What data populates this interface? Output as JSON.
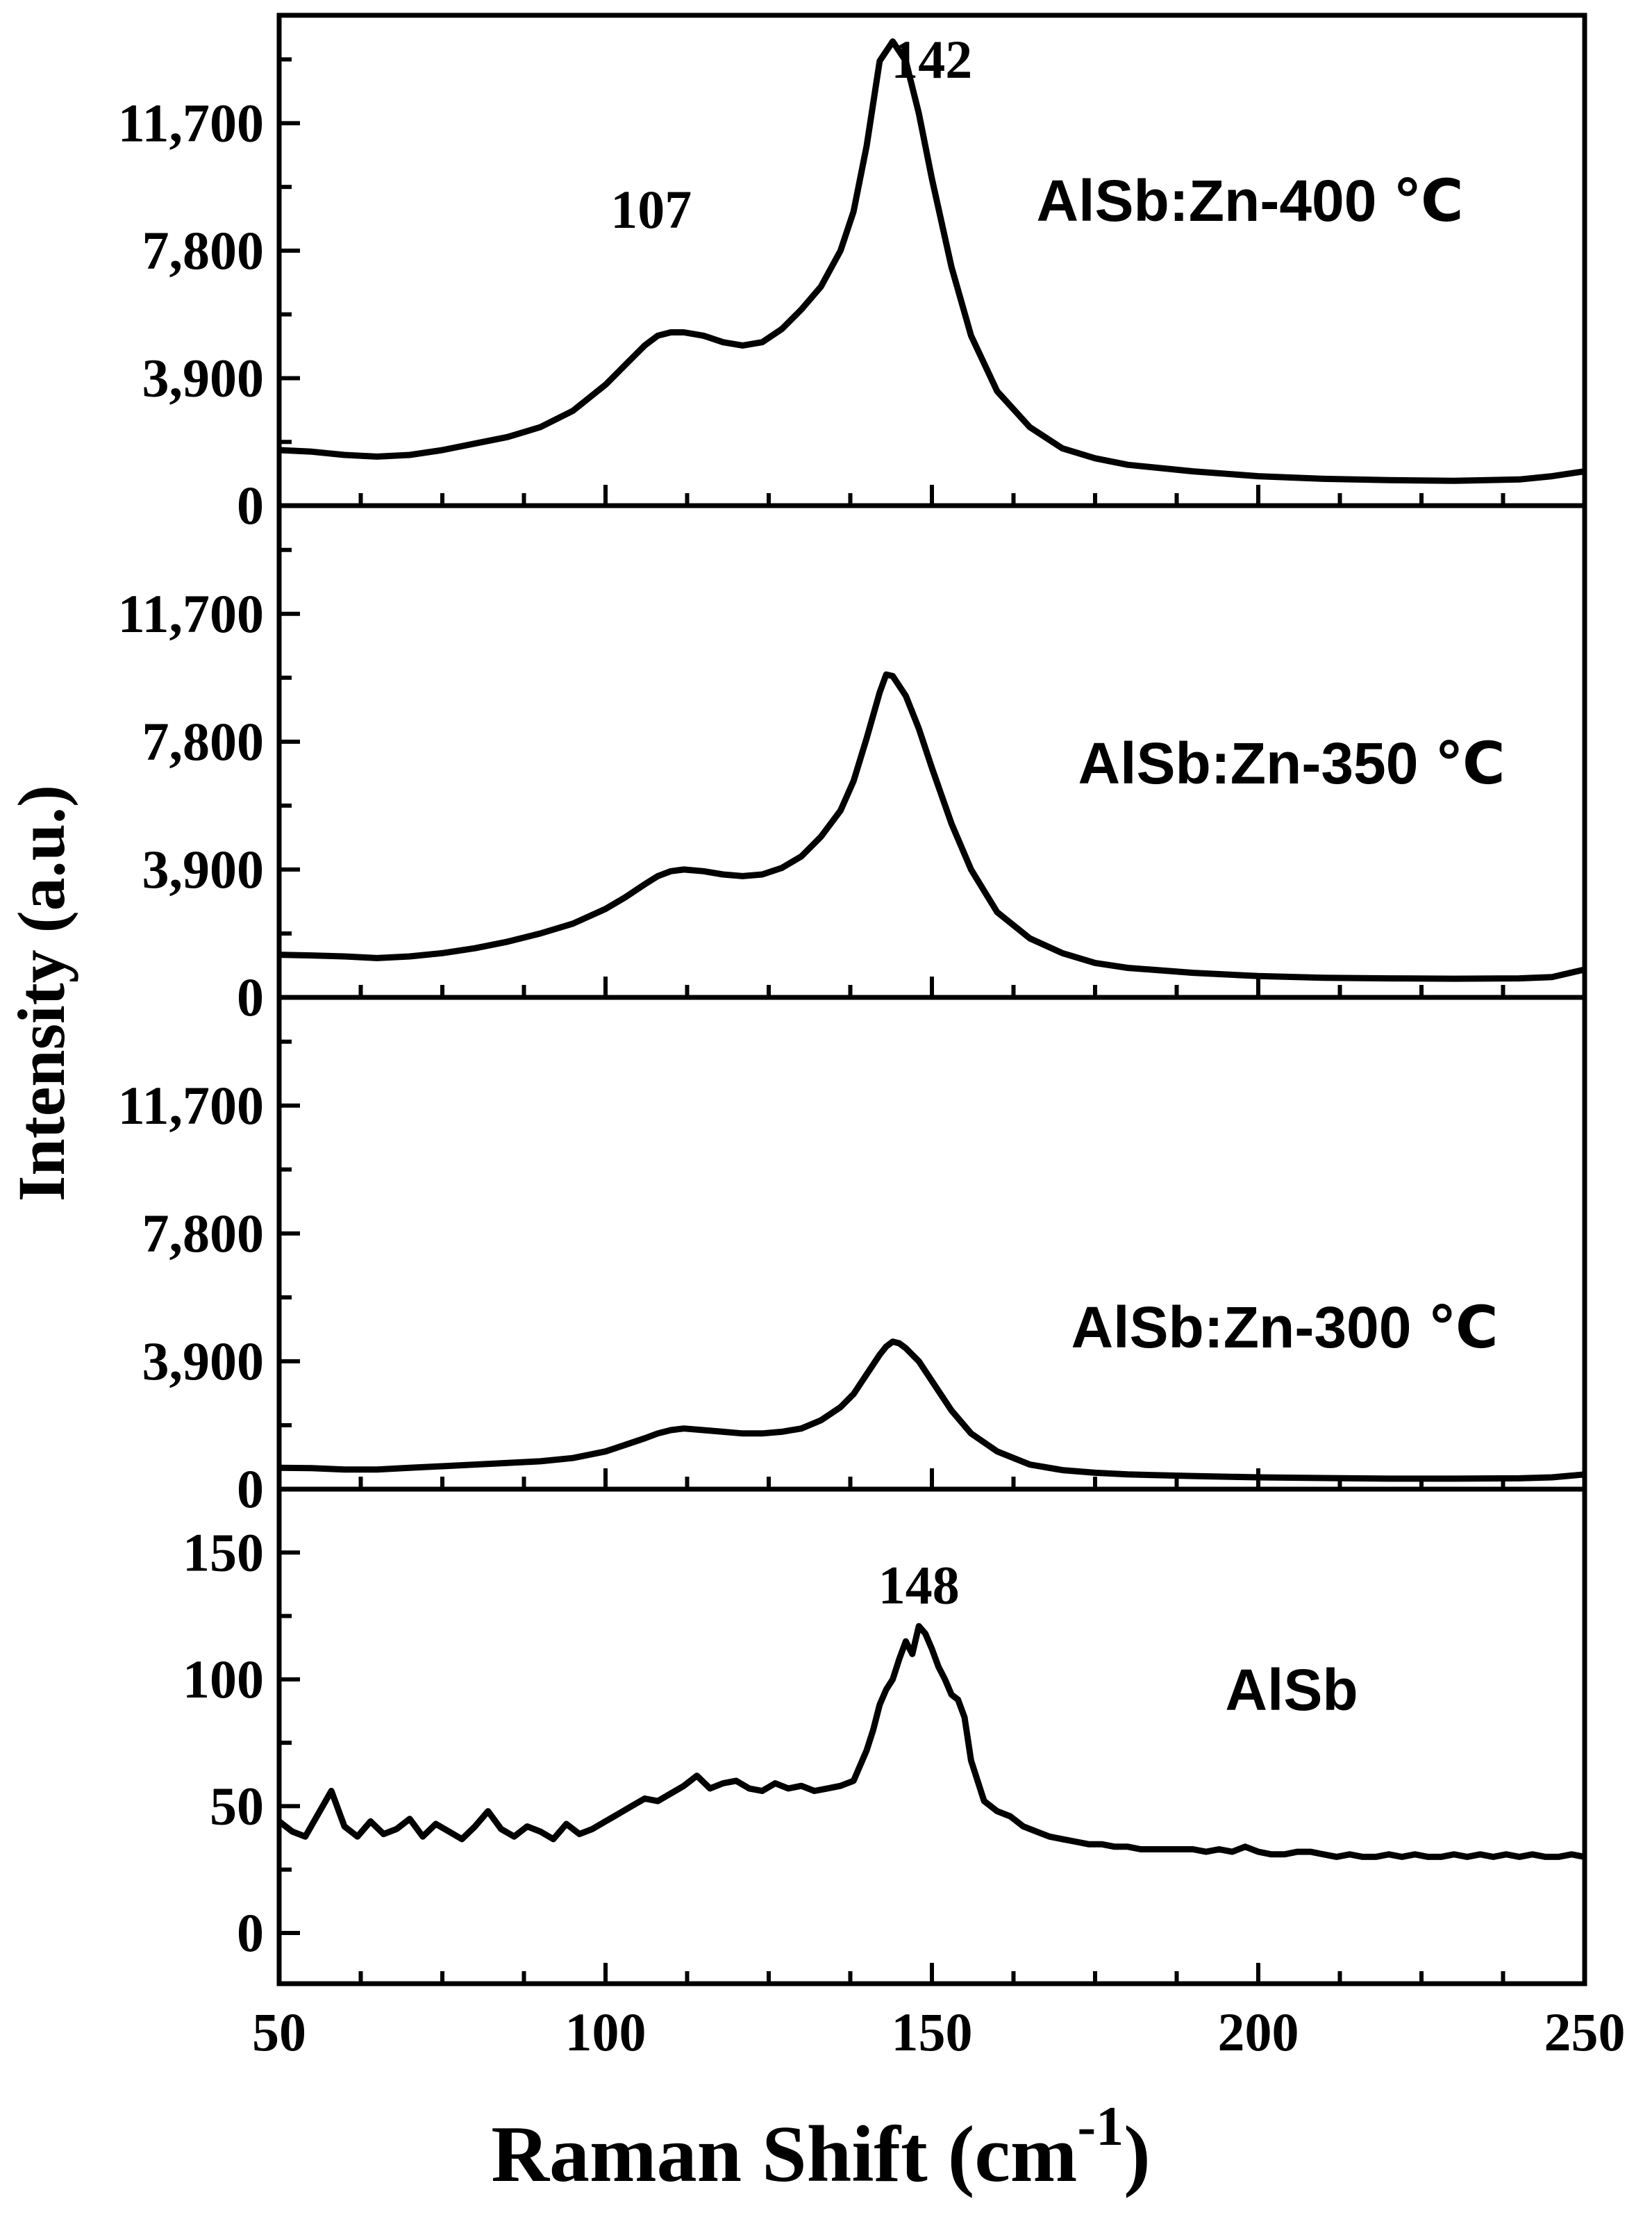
{
  "chart_data": {
    "type": "line",
    "xlabel": "Raman Shift  (cm",
    "xlabel_superscript": "-1",
    "xlabel_suffix": ")",
    "ylabel": "Intensity (a.u.)",
    "xlim": [
      50,
      250
    ],
    "x_ticks": [
      "50",
      "100",
      "150",
      "200",
      "250"
    ],
    "panels": [
      {
        "label": "AlSb:Zn-400 ℃",
        "ylim": [
          0,
          15000
        ],
        "y_ticks": [
          0,
          3900,
          7800,
          11700
        ],
        "y_tick_labels": [
          "0",
          "3,900",
          "7,800",
          "11,700"
        ],
        "annotations": [
          {
            "text": "107",
            "x": 107,
            "y": 8500
          },
          {
            "text": "142",
            "x": 142,
            "y": 13500
          }
        ],
        "x": [
          50,
          55,
          60,
          65,
          70,
          75,
          80,
          85,
          90,
          95,
          100,
          103,
          106,
          108,
          110,
          112,
          115,
          118,
          121,
          124,
          127,
          130,
          133,
          136,
          138,
          140,
          142,
          144,
          146,
          148,
          150,
          153,
          156,
          160,
          165,
          170,
          175,
          180,
          190,
          200,
          210,
          220,
          230,
          240,
          245,
          250
        ],
        "y": [
          1700,
          1650,
          1550,
          1500,
          1550,
          1700,
          1900,
          2100,
          2400,
          2900,
          3700,
          4300,
          4900,
          5200,
          5300,
          5300,
          5200,
          5000,
          4900,
          5000,
          5400,
          6000,
          6700,
          7800,
          9000,
          11000,
          13600,
          14200,
          13600,
          12000,
          10000,
          7300,
          5200,
          3500,
          2400,
          1750,
          1450,
          1250,
          1050,
          900,
          820,
          780,
          760,
          800,
          900,
          1050
        ]
      },
      {
        "label": "AlSb:Zn-350 ℃",
        "ylim": [
          0,
          15000
        ],
        "y_ticks": [
          0,
          3900,
          7800,
          11700
        ],
        "y_tick_labels": [
          "0",
          "3,900",
          "7,800",
          "11,700"
        ],
        "annotations": [],
        "x": [
          50,
          55,
          60,
          65,
          70,
          75,
          80,
          85,
          90,
          95,
          100,
          103,
          106,
          108,
          110,
          112,
          115,
          118,
          121,
          124,
          127,
          130,
          133,
          136,
          138,
          140,
          142,
          143,
          144,
          146,
          148,
          150,
          153,
          156,
          160,
          165,
          170,
          175,
          180,
          190,
          200,
          210,
          220,
          230,
          240,
          245,
          250
        ],
        "y": [
          1300,
          1280,
          1250,
          1200,
          1250,
          1350,
          1500,
          1700,
          1950,
          2250,
          2700,
          3050,
          3450,
          3700,
          3850,
          3900,
          3850,
          3750,
          3700,
          3750,
          3950,
          4300,
          4900,
          5700,
          6600,
          7900,
          9300,
          9850,
          9800,
          9200,
          8200,
          7000,
          5300,
          3900,
          2600,
          1800,
          1350,
          1050,
          900,
          750,
          650,
          600,
          580,
          570,
          580,
          620,
          850
        ]
      },
      {
        "label": "AlSb:Zn-300 ℃",
        "ylim": [
          0,
          15000
        ],
        "y_ticks": [
          0,
          3900,
          7800,
          11700
        ],
        "y_tick_labels": [
          "0",
          "3,900",
          "7,800",
          "11,700"
        ],
        "annotations": [],
        "x": [
          50,
          55,
          60,
          65,
          70,
          75,
          80,
          85,
          90,
          95,
          100,
          103,
          106,
          108,
          110,
          112,
          115,
          118,
          121,
          124,
          127,
          130,
          133,
          136,
          138,
          140,
          142,
          143,
          144,
          145,
          146,
          148,
          150,
          153,
          156,
          160,
          165,
          170,
          175,
          180,
          190,
          200,
          210,
          220,
          230,
          240,
          245,
          250
        ],
        "y": [
          650,
          640,
          600,
          600,
          650,
          700,
          750,
          800,
          850,
          950,
          1150,
          1350,
          1550,
          1700,
          1800,
          1850,
          1800,
          1750,
          1700,
          1700,
          1750,
          1850,
          2100,
          2500,
          2900,
          3500,
          4100,
          4350,
          4500,
          4450,
          4300,
          3900,
          3300,
          2400,
          1700,
          1150,
          750,
          580,
          500,
          450,
          400,
          360,
          340,
          320,
          320,
          330,
          360,
          450
        ]
      },
      {
        "label": "AlSb",
        "ylim": [
          -20,
          175
        ],
        "y_ticks": [
          0,
          50,
          100,
          150
        ],
        "y_tick_labels": [
          "0",
          "50",
          "100",
          "150"
        ],
        "annotations": [
          {
            "text": "148",
            "x": 148,
            "y": 130
          }
        ],
        "x": [
          50,
          52,
          54,
          56,
          58,
          60,
          62,
          64,
          66,
          68,
          70,
          72,
          74,
          76,
          78,
          80,
          82,
          84,
          86,
          88,
          90,
          92,
          94,
          96,
          98,
          100,
          102,
          104,
          106,
          108,
          110,
          112,
          114,
          116,
          118,
          120,
          122,
          124,
          126,
          128,
          130,
          132,
          134,
          136,
          138,
          140,
          141,
          142,
          143,
          144,
          145,
          146,
          147,
          148,
          149,
          150,
          151,
          152,
          153,
          154,
          155,
          156,
          157,
          158,
          160,
          162,
          164,
          166,
          168,
          170,
          172,
          174,
          176,
          178,
          180,
          182,
          184,
          186,
          188,
          190,
          192,
          194,
          196,
          198,
          200,
          202,
          204,
          206,
          208,
          210,
          212,
          214,
          216,
          218,
          220,
          222,
          224,
          226,
          228,
          230,
          232,
          234,
          236,
          238,
          240,
          242,
          244,
          246,
          248,
          250
        ],
        "y": [
          44,
          40,
          38,
          47,
          56,
          42,
          38,
          44,
          39,
          41,
          45,
          38,
          43,
          40,
          37,
          42,
          48,
          41,
          38,
          42,
          40,
          37,
          43,
          39,
          41,
          44,
          47,
          50,
          53,
          52,
          55,
          58,
          62,
          57,
          59,
          60,
          57,
          56,
          59,
          57,
          58,
          56,
          57,
          58,
          60,
          72,
          80,
          90,
          96,
          100,
          108,
          115,
          110,
          121,
          118,
          112,
          105,
          100,
          94,
          92,
          85,
          68,
          60,
          52,
          48,
          46,
          42,
          40,
          38,
          37,
          36,
          35,
          35,
          34,
          34,
          33,
          33,
          33,
          33,
          33,
          32,
          33,
          32,
          34,
          32,
          31,
          31,
          32,
          32,
          31,
          30,
          31,
          30,
          30,
          31,
          30,
          31,
          30,
          30,
          31,
          30,
          31,
          30,
          31,
          30,
          31,
          30,
          30,
          31,
          30
        ]
      }
    ]
  }
}
